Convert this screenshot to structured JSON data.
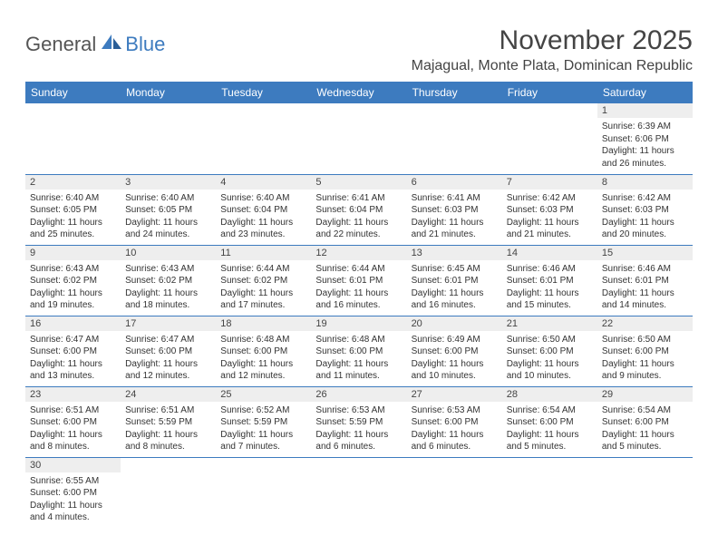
{
  "logo": {
    "word1": "General",
    "word2": "Blue"
  },
  "title": "November 2025",
  "location": "Majagual, Monte Plata, Dominican Republic",
  "colors": {
    "header_bg": "#3d7bbf",
    "header_text": "#ffffff",
    "daynum_bg": "#eeeeee",
    "row_border": "#3d7bbf",
    "page_bg": "#ffffff",
    "text": "#333333"
  },
  "weekdays": [
    "Sunday",
    "Monday",
    "Tuesday",
    "Wednesday",
    "Thursday",
    "Friday",
    "Saturday"
  ],
  "weeks": [
    [
      null,
      null,
      null,
      null,
      null,
      null,
      {
        "n": "1",
        "sr": "6:39 AM",
        "ss": "6:06 PM",
        "dl": "11 hours and 26 minutes."
      }
    ],
    [
      {
        "n": "2",
        "sr": "6:40 AM",
        "ss": "6:05 PM",
        "dl": "11 hours and 25 minutes."
      },
      {
        "n": "3",
        "sr": "6:40 AM",
        "ss": "6:05 PM",
        "dl": "11 hours and 24 minutes."
      },
      {
        "n": "4",
        "sr": "6:40 AM",
        "ss": "6:04 PM",
        "dl": "11 hours and 23 minutes."
      },
      {
        "n": "5",
        "sr": "6:41 AM",
        "ss": "6:04 PM",
        "dl": "11 hours and 22 minutes."
      },
      {
        "n": "6",
        "sr": "6:41 AM",
        "ss": "6:03 PM",
        "dl": "11 hours and 21 minutes."
      },
      {
        "n": "7",
        "sr": "6:42 AM",
        "ss": "6:03 PM",
        "dl": "11 hours and 21 minutes."
      },
      {
        "n": "8",
        "sr": "6:42 AM",
        "ss": "6:03 PM",
        "dl": "11 hours and 20 minutes."
      }
    ],
    [
      {
        "n": "9",
        "sr": "6:43 AM",
        "ss": "6:02 PM",
        "dl": "11 hours and 19 minutes."
      },
      {
        "n": "10",
        "sr": "6:43 AM",
        "ss": "6:02 PM",
        "dl": "11 hours and 18 minutes."
      },
      {
        "n": "11",
        "sr": "6:44 AM",
        "ss": "6:02 PM",
        "dl": "11 hours and 17 minutes."
      },
      {
        "n": "12",
        "sr": "6:44 AM",
        "ss": "6:01 PM",
        "dl": "11 hours and 16 minutes."
      },
      {
        "n": "13",
        "sr": "6:45 AM",
        "ss": "6:01 PM",
        "dl": "11 hours and 16 minutes."
      },
      {
        "n": "14",
        "sr": "6:46 AM",
        "ss": "6:01 PM",
        "dl": "11 hours and 15 minutes."
      },
      {
        "n": "15",
        "sr": "6:46 AM",
        "ss": "6:01 PM",
        "dl": "11 hours and 14 minutes."
      }
    ],
    [
      {
        "n": "16",
        "sr": "6:47 AM",
        "ss": "6:00 PM",
        "dl": "11 hours and 13 minutes."
      },
      {
        "n": "17",
        "sr": "6:47 AM",
        "ss": "6:00 PM",
        "dl": "11 hours and 12 minutes."
      },
      {
        "n": "18",
        "sr": "6:48 AM",
        "ss": "6:00 PM",
        "dl": "11 hours and 12 minutes."
      },
      {
        "n": "19",
        "sr": "6:48 AM",
        "ss": "6:00 PM",
        "dl": "11 hours and 11 minutes."
      },
      {
        "n": "20",
        "sr": "6:49 AM",
        "ss": "6:00 PM",
        "dl": "11 hours and 10 minutes."
      },
      {
        "n": "21",
        "sr": "6:50 AM",
        "ss": "6:00 PM",
        "dl": "11 hours and 10 minutes."
      },
      {
        "n": "22",
        "sr": "6:50 AM",
        "ss": "6:00 PM",
        "dl": "11 hours and 9 minutes."
      }
    ],
    [
      {
        "n": "23",
        "sr": "6:51 AM",
        "ss": "6:00 PM",
        "dl": "11 hours and 8 minutes."
      },
      {
        "n": "24",
        "sr": "6:51 AM",
        "ss": "5:59 PM",
        "dl": "11 hours and 8 minutes."
      },
      {
        "n": "25",
        "sr": "6:52 AM",
        "ss": "5:59 PM",
        "dl": "11 hours and 7 minutes."
      },
      {
        "n": "26",
        "sr": "6:53 AM",
        "ss": "5:59 PM",
        "dl": "11 hours and 6 minutes."
      },
      {
        "n": "27",
        "sr": "6:53 AM",
        "ss": "6:00 PM",
        "dl": "11 hours and 6 minutes."
      },
      {
        "n": "28",
        "sr": "6:54 AM",
        "ss": "6:00 PM",
        "dl": "11 hours and 5 minutes."
      },
      {
        "n": "29",
        "sr": "6:54 AM",
        "ss": "6:00 PM",
        "dl": "11 hours and 5 minutes."
      }
    ],
    [
      {
        "n": "30",
        "sr": "6:55 AM",
        "ss": "6:00 PM",
        "dl": "11 hours and 4 minutes."
      },
      null,
      null,
      null,
      null,
      null,
      null
    ]
  ],
  "labels": {
    "sunrise": "Sunrise: ",
    "sunset": "Sunset: ",
    "daylight": "Daylight: "
  }
}
